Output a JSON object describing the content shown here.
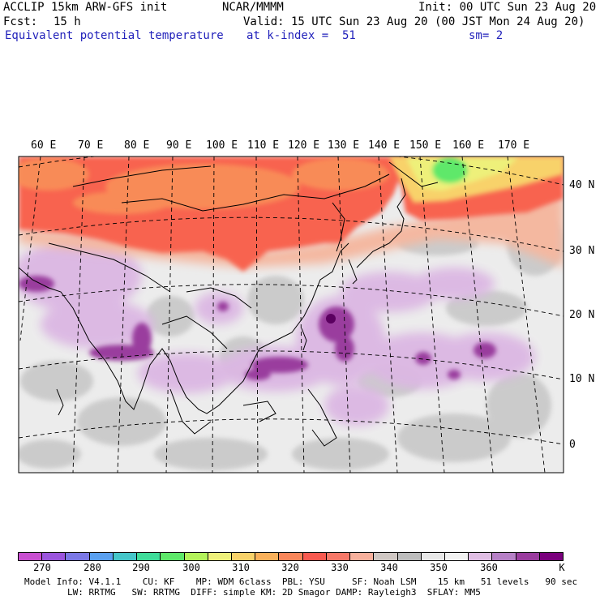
{
  "header": {
    "model": "ACCLIP 15km ARW-GFS init",
    "org": "NCAR/MMMM",
    "init": "Init: 00 UTC Sun 23 Aug 20",
    "fcst_label": "Fcst:",
    "fcst_value": "15 h",
    "valid": "Valid: 15 UTC Sun 23 Aug 20 (00 JST Mon 24 Aug 20)",
    "field": "Equivalent potential temperature",
    "level": "at k-index =  51",
    "smooth": "sm= 2"
  },
  "map": {
    "lon_labels": [
      "60 E",
      "70 E",
      "80 E",
      "90 E",
      "100 E",
      "110 E",
      "120 E",
      "130 E",
      "140 E",
      "150 E",
      "160 E",
      "170 E"
    ],
    "lat_labels": [
      "40 N",
      "30 N",
      "20 N",
      "10 N",
      "0"
    ]
  },
  "colorbar": {
    "colors": [
      "#c84fd0",
      "#9b55dd",
      "#7b78e6",
      "#5aa0ef",
      "#45c6c9",
      "#3fdc9a",
      "#5ee86a",
      "#b3f25a",
      "#eef07a",
      "#f8d26a",
      "#f9b05a",
      "#f9865a",
      "#f85a50",
      "#f67868",
      "#f7b09c",
      "#cfc7c3",
      "#bdbdbd",
      "#e8e8e8",
      "#f2f2f2",
      "#e0bee4",
      "#b680c6",
      "#9a3c9e",
      "#7a007d"
    ],
    "labels": [
      "270",
      "280",
      "290",
      "300",
      "310",
      "320",
      "330",
      "340",
      "350",
      "360",
      "K"
    ]
  },
  "footer": {
    "line1": "Model Info: V4.1.1    CU: KF    MP: WDM 6class  PBL: YSU     SF: Noah LSM    15 km   51 levels   90 sec",
    "line2": "        LW: RRTMG   SW: RRTMG  DIFF: simple KM: 2D Smagor DAMP: Rayleigh3  SFLAY: MM5"
  }
}
